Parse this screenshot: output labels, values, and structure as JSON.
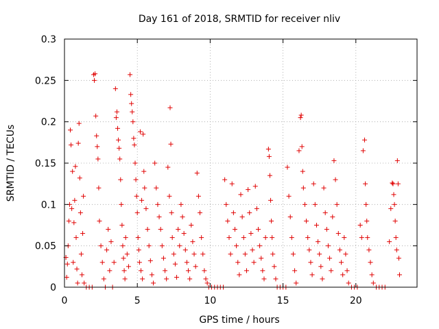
{
  "chart_data": {
    "type": "scatter",
    "title": "Day 161 of 2018, SRMTID for receiver nliv",
    "xlabel": "GPS time / hours",
    "ylabel": "SRMTID / TECUs",
    "xlim": [
      0,
      24.2
    ],
    "ylim": [
      0,
      0.3
    ],
    "x_ticks": [
      0,
      5,
      10,
      15,
      20
    ],
    "x_tick_labels": [
      "0",
      "5",
      "10",
      "15",
      "20"
    ],
    "y_ticks": [
      0,
      0.05,
      0.1,
      0.15,
      0.2,
      0.25,
      0.3
    ],
    "y_tick_labels": [
      "0",
      "0.05",
      "0.1",
      "0.15",
      "0.2",
      "0.25",
      "0.3"
    ],
    "grid": true,
    "marker": "plus",
    "color": "#e00000",
    "series": [
      {
        "name": "SRMTID",
        "points": [
          [
            0.1,
            0.036
          ],
          [
            0.15,
            0.012
          ],
          [
            0.2,
            0.028
          ],
          [
            0.25,
            0.05
          ],
          [
            0.3,
            0.08
          ],
          [
            0.35,
            0.1
          ],
          [
            0.4,
            0.19
          ],
          [
            0.45,
            0.172
          ],
          [
            0.5,
            0.095
          ],
          [
            0.55,
            0.14
          ],
          [
            0.6,
            0.03
          ],
          [
            0.65,
            0.078
          ],
          [
            0.7,
            0.105
          ],
          [
            0.75,
            0.146
          ],
          [
            0.8,
            0.06
          ],
          [
            0.85,
            0.022
          ],
          [
            0.9,
            0.005
          ],
          [
            0.95,
            0.174
          ],
          [
            1.0,
            0.198
          ],
          [
            1.05,
            0.132
          ],
          [
            1.1,
            0.09
          ],
          [
            1.15,
            0.04
          ],
          [
            1.2,
            0.015
          ],
          [
            1.25,
            0.065
          ],
          [
            1.3,
            0.11
          ],
          [
            1.35,
            0.005
          ],
          [
            1.5,
            0.0
          ],
          [
            1.7,
            0.0
          ],
          [
            1.9,
            0.0
          ],
          [
            2.0,
            0.257
          ],
          [
            2.05,
            0.25
          ],
          [
            2.1,
            0.258
          ],
          [
            2.15,
            0.207
          ],
          [
            2.2,
            0.183
          ],
          [
            2.25,
            0.17
          ],
          [
            2.3,
            0.155
          ],
          [
            2.35,
            0.12
          ],
          [
            2.4,
            0.08
          ],
          [
            2.5,
            0.05
          ],
          [
            2.6,
            0.03
          ],
          [
            2.7,
            0.01
          ],
          [
            2.8,
            0.0
          ],
          [
            2.9,
            0.045
          ],
          [
            3.0,
            0.07
          ],
          [
            3.1,
            0.02
          ],
          [
            3.2,
            0.055
          ],
          [
            3.3,
            0.0
          ],
          [
            3.4,
            0.03
          ],
          [
            3.5,
            0.24
          ],
          [
            3.55,
            0.205
          ],
          [
            3.6,
            0.212
          ],
          [
            3.65,
            0.192
          ],
          [
            3.7,
            0.178
          ],
          [
            3.75,
            0.168
          ],
          [
            3.8,
            0.155
          ],
          [
            3.85,
            0.13
          ],
          [
            3.9,
            0.1
          ],
          [
            3.95,
            0.075
          ],
          [
            4.0,
            0.05
          ],
          [
            4.05,
            0.035
          ],
          [
            4.1,
            0.02
          ],
          [
            4.15,
            0.01
          ],
          [
            4.2,
            0.06
          ],
          [
            4.3,
            0.04
          ],
          [
            4.4,
            0.025
          ],
          [
            4.5,
            0.257
          ],
          [
            4.55,
            0.233
          ],
          [
            4.6,
            0.222
          ],
          [
            4.65,
            0.212
          ],
          [
            4.7,
            0.2
          ],
          [
            4.75,
            0.18
          ],
          [
            4.8,
            0.172
          ],
          [
            4.85,
            0.15
          ],
          [
            4.9,
            0.13
          ],
          [
            4.95,
            0.11
          ],
          [
            5.0,
            0.09
          ],
          [
            5.05,
            0.06
          ],
          [
            5.1,
            0.045
          ],
          [
            5.15,
            0.03
          ],
          [
            5.2,
            0.188
          ],
          [
            5.25,
            0.02
          ],
          [
            5.3,
            0.105
          ],
          [
            5.35,
            0.01
          ],
          [
            5.4,
            0.185
          ],
          [
            5.45,
            0.14
          ],
          [
            5.5,
            0.12
          ],
          [
            5.6,
            0.095
          ],
          [
            5.7,
            0.07
          ],
          [
            5.8,
            0.05
          ],
          [
            5.9,
            0.032
          ],
          [
            6.0,
            0.015
          ],
          [
            6.1,
            0.005
          ],
          [
            6.2,
            0.15
          ],
          [
            6.3,
            0.12
          ],
          [
            6.4,
            0.1
          ],
          [
            6.5,
            0.085
          ],
          [
            6.6,
            0.07
          ],
          [
            6.7,
            0.05
          ],
          [
            6.8,
            0.035
          ],
          [
            6.9,
            0.02
          ],
          [
            7.0,
            0.01
          ],
          [
            7.1,
            0.145
          ],
          [
            7.2,
            0.11
          ],
          [
            7.25,
            0.217
          ],
          [
            7.3,
            0.173
          ],
          [
            7.35,
            0.09
          ],
          [
            7.4,
            0.06
          ],
          [
            7.5,
            0.04
          ],
          [
            7.6,
            0.028
          ],
          [
            7.7,
            0.012
          ],
          [
            7.8,
            0.07
          ],
          [
            7.9,
            0.05
          ],
          [
            8.0,
            0.1
          ],
          [
            8.1,
            0.085
          ],
          [
            8.2,
            0.065
          ],
          [
            8.3,
            0.045
          ],
          [
            8.4,
            0.03
          ],
          [
            8.5,
            0.02
          ],
          [
            8.6,
            0.01
          ],
          [
            8.7,
            0.075
          ],
          [
            8.8,
            0.055
          ],
          [
            8.9,
            0.04
          ],
          [
            9.0,
            0.025
          ],
          [
            9.1,
            0.138
          ],
          [
            9.2,
            0.11
          ],
          [
            9.3,
            0.09
          ],
          [
            9.4,
            0.06
          ],
          [
            9.5,
            0.04
          ],
          [
            9.6,
            0.02
          ],
          [
            9.7,
            0.01
          ],
          [
            9.8,
            0.005
          ],
          [
            9.9,
            0.0
          ],
          [
            10.1,
            0.0
          ],
          [
            10.3,
            0.0
          ],
          [
            10.5,
            0.0
          ],
          [
            10.7,
            0.0
          ],
          [
            10.9,
            0.0
          ],
          [
            11.0,
            0.13
          ],
          [
            11.1,
            0.1
          ],
          [
            11.2,
            0.08
          ],
          [
            11.3,
            0.06
          ],
          [
            11.4,
            0.04
          ],
          [
            11.5,
            0.125
          ],
          [
            11.6,
            0.09
          ],
          [
            11.7,
            0.07
          ],
          [
            11.8,
            0.05
          ],
          [
            11.9,
            0.03
          ],
          [
            12.0,
            0.015
          ],
          [
            12.1,
            0.112
          ],
          [
            12.2,
            0.085
          ],
          [
            12.3,
            0.06
          ],
          [
            12.4,
            0.04
          ],
          [
            12.5,
            0.02
          ],
          [
            12.6,
            0.118
          ],
          [
            12.7,
            0.09
          ],
          [
            12.8,
            0.065
          ],
          [
            12.9,
            0.045
          ],
          [
            13.0,
            0.03
          ],
          [
            13.1,
            0.122
          ],
          [
            13.2,
            0.095
          ],
          [
            13.3,
            0.07
          ],
          [
            13.4,
            0.05
          ],
          [
            13.5,
            0.035
          ],
          [
            13.6,
            0.02
          ],
          [
            13.7,
            0.01
          ],
          [
            13.8,
            0.06
          ],
          [
            14.0,
            0.167
          ],
          [
            14.05,
            0.158
          ],
          [
            14.1,
            0.135
          ],
          [
            14.15,
            0.105
          ],
          [
            14.2,
            0.08
          ],
          [
            14.25,
            0.06
          ],
          [
            14.3,
            0.04
          ],
          [
            14.4,
            0.025
          ],
          [
            14.5,
            0.01
          ],
          [
            14.6,
            0.0
          ],
          [
            14.8,
            0.0
          ],
          [
            15.0,
            0.0
          ],
          [
            15.2,
            0.0
          ],
          [
            15.3,
            0.145
          ],
          [
            15.4,
            0.11
          ],
          [
            15.5,
            0.085
          ],
          [
            15.6,
            0.06
          ],
          [
            15.7,
            0.04
          ],
          [
            15.8,
            0.02
          ],
          [
            15.9,
            0.005
          ],
          [
            16.1,
            0.165
          ],
          [
            16.2,
            0.205
          ],
          [
            16.25,
            0.208
          ],
          [
            16.3,
            0.17
          ],
          [
            16.35,
            0.14
          ],
          [
            16.4,
            0.12
          ],
          [
            16.5,
            0.1
          ],
          [
            16.6,
            0.08
          ],
          [
            16.7,
            0.06
          ],
          [
            16.8,
            0.045
          ],
          [
            16.9,
            0.03
          ],
          [
            17.0,
            0.015
          ],
          [
            17.1,
            0.125
          ],
          [
            17.2,
            0.1
          ],
          [
            17.3,
            0.075
          ],
          [
            17.4,
            0.055
          ],
          [
            17.5,
            0.04
          ],
          [
            17.6,
            0.025
          ],
          [
            17.7,
            0.01
          ],
          [
            17.8,
            0.12
          ],
          [
            17.9,
            0.09
          ],
          [
            18.0,
            0.07
          ],
          [
            18.1,
            0.05
          ],
          [
            18.2,
            0.035
          ],
          [
            18.3,
            0.02
          ],
          [
            18.4,
            0.085
          ],
          [
            18.5,
            0.153
          ],
          [
            18.6,
            0.13
          ],
          [
            18.7,
            0.1
          ],
          [
            18.8,
            0.065
          ],
          [
            18.9,
            0.045
          ],
          [
            19.0,
            0.03
          ],
          [
            19.1,
            0.015
          ],
          [
            19.2,
            0.06
          ],
          [
            19.3,
            0.04
          ],
          [
            19.4,
            0.02
          ],
          [
            19.5,
            0.005
          ],
          [
            19.7,
            0.0
          ],
          [
            19.9,
            0.0
          ],
          [
            20.1,
            0.0
          ],
          [
            20.3,
            0.075
          ],
          [
            20.4,
            0.06
          ],
          [
            20.5,
            0.165
          ],
          [
            20.6,
            0.178
          ],
          [
            20.65,
            0.125
          ],
          [
            20.7,
            0.1
          ],
          [
            20.75,
            0.08
          ],
          [
            20.8,
            0.06
          ],
          [
            20.9,
            0.045
          ],
          [
            21.0,
            0.03
          ],
          [
            21.1,
            0.015
          ],
          [
            21.2,
            0.005
          ],
          [
            21.4,
            0.0
          ],
          [
            21.6,
            0.0
          ],
          [
            21.8,
            0.0
          ],
          [
            22.0,
            0.0
          ],
          [
            22.3,
            0.055
          ],
          [
            22.4,
            0.095
          ],
          [
            22.5,
            0.126
          ],
          [
            22.55,
            0.125
          ],
          [
            22.6,
            0.112
          ],
          [
            22.65,
            0.1
          ],
          [
            22.7,
            0.08
          ],
          [
            22.75,
            0.06
          ],
          [
            22.8,
            0.045
          ],
          [
            22.85,
            0.153
          ],
          [
            22.9,
            0.125
          ],
          [
            22.95,
            0.035
          ],
          [
            23.0,
            0.015
          ]
        ]
      }
    ]
  }
}
